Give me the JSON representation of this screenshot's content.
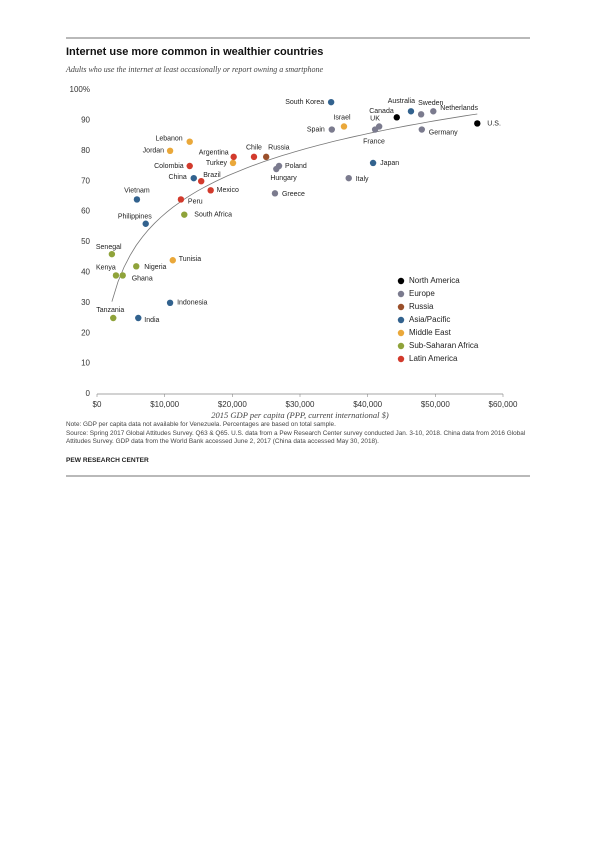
{
  "chart_data": {
    "type": "scatter",
    "title": "Internet use more common in wealthier countries",
    "subtitle": "Adults who use the internet at least occasionally or report owning a smartphone",
    "x_label": "2015 GDP per capita (PPP, current international $)",
    "xlim": [
      0,
      60000
    ],
    "xticks": [
      {
        "value": 0,
        "label": "$0"
      },
      {
        "value": 10000,
        "label": "$10,000"
      },
      {
        "value": 20000,
        "label": "$20,000"
      },
      {
        "value": 30000,
        "label": "$30,000"
      },
      {
        "value": 40000,
        "label": "$40,000"
      },
      {
        "value": 50000,
        "label": "$50,000"
      },
      {
        "value": 60000,
        "label": "$60,000"
      }
    ],
    "ylim": [
      0,
      100
    ],
    "yticks": [
      0,
      10,
      20,
      30,
      40,
      50,
      60,
      70,
      80,
      90,
      {
        "value": 100,
        "label": "100%"
      }
    ],
    "legend": "right",
    "series": [
      {
        "name": "North America",
        "color": "#000000",
        "labels": [
          "Canada",
          "U.S."
        ],
        "x": [
          44300,
          56200
        ],
        "values": [
          91,
          89
        ]
      },
      {
        "name": "Europe",
        "color": "#7b7b8e",
        "labels": [
          "Sweden",
          "Netherlands",
          "UK",
          "France",
          "Germany",
          "Spain",
          "Italy",
          "Poland",
          "Hungary",
          "Greece"
        ],
        "x": [
          47900,
          49700,
          41700,
          41100,
          48000,
          34700,
          37200,
          26900,
          26500,
          26300
        ],
        "values": [
          92,
          93,
          88,
          87,
          87,
          87,
          71,
          75,
          74,
          66
        ]
      },
      {
        "name": "Russia",
        "color": "#9a4f2a",
        "labels": [
          "Russia"
        ],
        "x": [
          25000
        ],
        "values": [
          78
        ]
      },
      {
        "name": "Asia/Pacific",
        "color": "#32628e",
        "labels": [
          "South Korea",
          "Australia",
          "Japan",
          "China",
          "Vietnam",
          "Philippines",
          "Indonesia",
          "India"
        ],
        "x": [
          34600,
          46400,
          40800,
          14300,
          5900,
          7200,
          10800,
          6100
        ],
        "values": [
          96,
          93,
          76,
          71,
          64,
          56,
          30,
          25
        ]
      },
      {
        "name": "Middle East",
        "color": "#eaa83a",
        "labels": [
          "Israel",
          "Lebanon",
          "Jordan",
          "Turkey",
          "Tunisia"
        ],
        "x": [
          36500,
          13700,
          10800,
          20100,
          11200
        ],
        "values": [
          88,
          83,
          80,
          76,
          44
        ]
      },
      {
        "name": "Sub-Saharan Africa",
        "color": "#8fa33a",
        "labels": [
          "Senegal",
          "Kenya",
          "Ghana",
          "Nigeria",
          "South Africa",
          "Tanzania"
        ],
        "x": [
          2200,
          2800,
          3800,
          5800,
          12900,
          2400
        ],
        "values": [
          46,
          39,
          39,
          42,
          59,
          25
        ]
      },
      {
        "name": "Latin America",
        "color": "#d23a2c",
        "labels": [
          "Argentina",
          "Chile",
          "Colombia",
          "Brazil",
          "Mexico",
          "Peru"
        ],
        "x": [
          20200,
          23200,
          13700,
          15400,
          16800,
          12400
        ],
        "values": [
          78,
          78,
          75,
          70,
          67,
          64
        ]
      }
    ],
    "note": "Note: GDP per capita data not available for Venezuela. Percentages are based on total sample.",
    "source": "Source: Spring 2017 Global Attitudes Survey. Q63 & Q65. U.S. data from a Pew Research Center survey conducted Jan. 3-10, 2018. China data from 2016 Global Attitudes Survey. GDP data from the World Bank accessed June 2, 2017 (China data accessed May 30, 2018).",
    "footer": "PEW RESEARCH CENTER"
  }
}
